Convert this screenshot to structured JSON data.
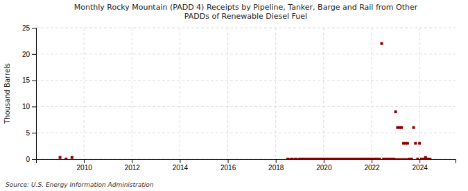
{
  "chart_data": {
    "type": "scatter",
    "title": "Monthly Rocky Mountain (PADD 4) Receipts by Pipeline, Tanker, Barge and Rail from Other\nPADDs of Renewable Diesel Fuel",
    "ylabel": "Thousand Barrels",
    "annotations": [
      "Source: U.S. Energy Information Administration"
    ],
    "grid": true,
    "xlim": [
      2008.0,
      2025.5
    ],
    "xticks": [
      2010,
      2012,
      2014,
      2016,
      2018,
      2020,
      2022,
      2024
    ],
    "ylim": [
      0,
      25
    ],
    "yticks": [
      0,
      5,
      10,
      15,
      20,
      25
    ],
    "series": [
      {
        "type": "scatter",
        "marker": "square",
        "color": "#8b0000",
        "x": [
          2009.0,
          2009.25,
          2009.5,
          2018.5,
          2018.67,
          2018.83,
          2019.0,
          2019.08,
          2019.17,
          2019.25,
          2019.33,
          2019.42,
          2019.5,
          2019.58,
          2019.67,
          2019.75,
          2019.83,
          2019.92,
          2020.0,
          2020.08,
          2020.17,
          2020.25,
          2020.33,
          2020.42,
          2020.5,
          2020.58,
          2020.67,
          2020.75,
          2020.83,
          2020.92,
          2021.0,
          2021.08,
          2021.17,
          2021.25,
          2021.33,
          2021.42,
          2021.5,
          2021.58,
          2021.67,
          2021.75,
          2021.83,
          2021.92,
          2022.0,
          2022.08,
          2022.17,
          2022.25,
          2022.33,
          2022.42,
          2022.5,
          2022.58,
          2022.67,
          2022.75,
          2022.83,
          2022.92,
          2023.0,
          2023.08,
          2023.17,
          2023.25,
          2023.33,
          2023.42,
          2023.5,
          2023.58,
          2023.67,
          2023.75,
          2023.83,
          2023.92,
          2024.0,
          2024.08,
          2024.17,
          2024.25,
          2024.33,
          2024.42
        ],
        "values": [
          0.3,
          0.0,
          0.3,
          0.0,
          0.0,
          0.0,
          0.0,
          0.0,
          0.0,
          0.0,
          0.0,
          0.0,
          0.0,
          0.0,
          0.0,
          0.0,
          0.0,
          0.0,
          0.0,
          0.0,
          0.0,
          0.0,
          0.0,
          0.0,
          0.0,
          0.0,
          0.0,
          0.0,
          0.0,
          0.0,
          0.0,
          0.0,
          0.0,
          0.0,
          0.0,
          0.0,
          0.0,
          0.0,
          0.0,
          0.0,
          0.0,
          0.0,
          0.0,
          0.0,
          0.0,
          0.0,
          0.0,
          22.0,
          0.0,
          0.0,
          0.0,
          0.0,
          0.0,
          0.0,
          9.0,
          6.0,
          6.0,
          6.0,
          3.0,
          3.0,
          3.0,
          0.0,
          0.0,
          6.0,
          3.0,
          0.0,
          3.0,
          0.0,
          0.0,
          0.3,
          0.0,
          0.0
        ]
      },
      {
        "type": "line",
        "color": "#8b0000",
        "x": [
          2018.5,
          2022.33
        ],
        "values": [
          0,
          0
        ]
      },
      {
        "type": "line",
        "color": "#8b0000",
        "x": [
          2022.5,
          2023.58
        ],
        "values": [
          0,
          0
        ]
      },
      {
        "type": "line",
        "color": "#8b0000",
        "x": [
          2024.08,
          2024.5
        ],
        "values": [
          0,
          0
        ]
      }
    ]
  }
}
